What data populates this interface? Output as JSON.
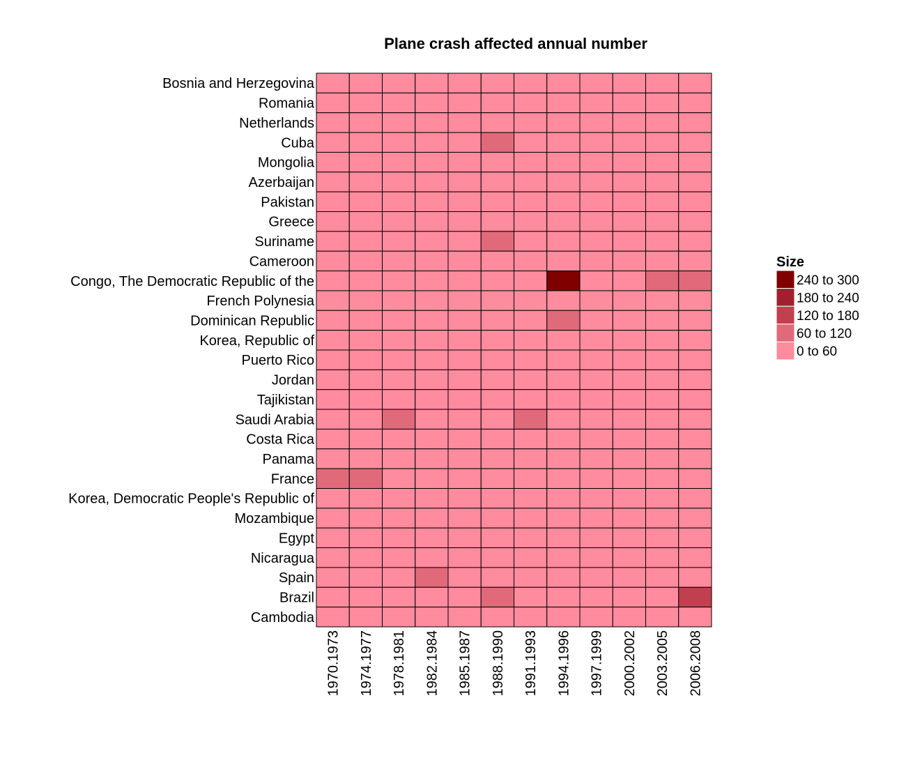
{
  "chart_data": {
    "type": "heatmap",
    "title": "Plane crash affected annual number",
    "xlabel": "",
    "ylabel": "",
    "x": [
      "1970.1973",
      "1974.1977",
      "1978.1981",
      "1982.1984",
      "1985.1987",
      "1988.1990",
      "1991.1993",
      "1994.1996",
      "1997.1999",
      "2000.2002",
      "2003.2005",
      "2006.2008"
    ],
    "y": [
      "Bosnia and Herzegovina",
      "Romania",
      "Netherlands",
      "Cuba",
      "Mongolia",
      "Azerbaijan",
      "Pakistan",
      "Greece",
      "Suriname",
      "Cameroon",
      "Congo, The Democratic Republic of the",
      "French Polynesia",
      "Dominican Republic",
      "Korea, Republic of",
      "Puerto Rico",
      "Jordan",
      "Tajikistan",
      "Saudi Arabia",
      "Costa Rica",
      "Panama",
      "France",
      "Korea, Democratic People's Republic of",
      "Mozambique",
      "Egypt",
      "Nicaragua",
      "Spain",
      "Brazil",
      "Cambodia"
    ],
    "values": [
      [
        0,
        0,
        0,
        0,
        0,
        0,
        0,
        0,
        0,
        0,
        0,
        0
      ],
      [
        0,
        0,
        0,
        0,
        0,
        0,
        0,
        0,
        0,
        0,
        0,
        0
      ],
      [
        0,
        0,
        0,
        0,
        0,
        0,
        0,
        0,
        0,
        0,
        0,
        0
      ],
      [
        0,
        0,
        0,
        0,
        0,
        1,
        0,
        0,
        0,
        0,
        0,
        0
      ],
      [
        0,
        0,
        0,
        0,
        0,
        0,
        0,
        0,
        0,
        0,
        0,
        0
      ],
      [
        0,
        0,
        0,
        0,
        0,
        0,
        0,
        0,
        0,
        0,
        0,
        0
      ],
      [
        0,
        0,
        0,
        0,
        0,
        0,
        0,
        0,
        0,
        0,
        0,
        0
      ],
      [
        0,
        0,
        0,
        0,
        0,
        0,
        0,
        0,
        0,
        0,
        0,
        0
      ],
      [
        0,
        0,
        0,
        0,
        0,
        1,
        0,
        0,
        0,
        0,
        0,
        0
      ],
      [
        0,
        0,
        0,
        0,
        0,
        0,
        0,
        0,
        0,
        0,
        0,
        0
      ],
      [
        0,
        0,
        0,
        0,
        0,
        0,
        0,
        4,
        0,
        0,
        1,
        1
      ],
      [
        0,
        0,
        0,
        0,
        0,
        0,
        0,
        0,
        0,
        0,
        0,
        0
      ],
      [
        0,
        0,
        0,
        0,
        0,
        0,
        0,
        1,
        0,
        0,
        0,
        0
      ],
      [
        0,
        0,
        0,
        0,
        0,
        0,
        0,
        0,
        0,
        0,
        0,
        0
      ],
      [
        0,
        0,
        0,
        0,
        0,
        0,
        0,
        0,
        0,
        0,
        0,
        0
      ],
      [
        0,
        0,
        0,
        0,
        0,
        0,
        0,
        0,
        0,
        0,
        0,
        0
      ],
      [
        0,
        0,
        0,
        0,
        0,
        0,
        0,
        0,
        0,
        0,
        0,
        0
      ],
      [
        0,
        0,
        1,
        0,
        0,
        0,
        1,
        0,
        0,
        0,
        0,
        0
      ],
      [
        0,
        0,
        0,
        0,
        0,
        0,
        0,
        0,
        0,
        0,
        0,
        0
      ],
      [
        0,
        0,
        0,
        0,
        0,
        0,
        0,
        0,
        0,
        0,
        0,
        0
      ],
      [
        1,
        1,
        0,
        0,
        0,
        0,
        0,
        0,
        0,
        0,
        0,
        0
      ],
      [
        0,
        0,
        0,
        0,
        0,
        0,
        0,
        0,
        0,
        0,
        0,
        0
      ],
      [
        0,
        0,
        0,
        0,
        0,
        0,
        0,
        0,
        0,
        0,
        0,
        0
      ],
      [
        0,
        0,
        0,
        0,
        0,
        0,
        0,
        0,
        0,
        0,
        0,
        0
      ],
      [
        0,
        0,
        0,
        0,
        0,
        0,
        0,
        0,
        0,
        0,
        0,
        0
      ],
      [
        0,
        0,
        0,
        1,
        0,
        0,
        0,
        0,
        0,
        0,
        0,
        0
      ],
      [
        0,
        0,
        0,
        0,
        0,
        1,
        0,
        0,
        0,
        0,
        0,
        2
      ],
      [
        0,
        0,
        0,
        0,
        0,
        0,
        0,
        0,
        0,
        0,
        0,
        0
      ]
    ],
    "value_encoding": "index into legend.bins (0 = \"0 to 60\", 4 = \"240 to 300\")",
    "legend": {
      "title": "Size",
      "placement": "right",
      "bins": [
        {
          "label": "0 to 60",
          "color": "#ff8b9e"
        },
        {
          "label": "60 to 120",
          "color": "#e06a7a"
        },
        {
          "label": "120 to 180",
          "color": "#c04050"
        },
        {
          "label": "180 to 240",
          "color": "#a02030"
        },
        {
          "label": "240 to 300",
          "color": "#800000"
        }
      ]
    },
    "grid": false
  }
}
